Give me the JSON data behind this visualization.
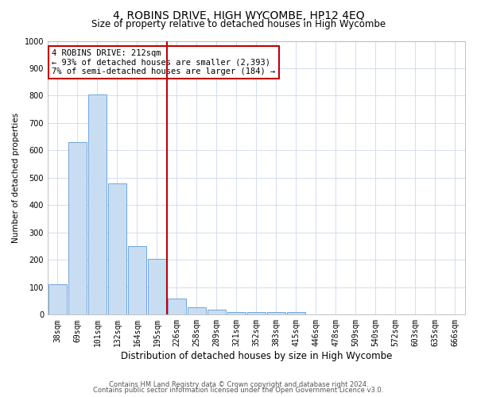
{
  "title": "4, ROBINS DRIVE, HIGH WYCOMBE, HP12 4EQ",
  "subtitle": "Size of property relative to detached houses in High Wycombe",
  "xlabel": "Distribution of detached houses by size in High Wycombe",
  "ylabel": "Number of detached properties",
  "categories": [
    "38sqm",
    "69sqm",
    "101sqm",
    "132sqm",
    "164sqm",
    "195sqm",
    "226sqm",
    "258sqm",
    "289sqm",
    "321sqm",
    "352sqm",
    "383sqm",
    "415sqm",
    "446sqm",
    "478sqm",
    "509sqm",
    "540sqm",
    "572sqm",
    "603sqm",
    "635sqm",
    "666sqm"
  ],
  "values": [
    110,
    630,
    805,
    480,
    250,
    205,
    60,
    28,
    18,
    10,
    10,
    10,
    10,
    0,
    0,
    0,
    0,
    0,
    0,
    0,
    0
  ],
  "bar_color": "#c9ddf2",
  "bar_edge_color": "#5b9bd5",
  "vline_x": 5.5,
  "vline_color": "#c00000",
  "annotation_line1": "4 ROBINS DRIVE: 212sqm",
  "annotation_line2": "← 93% of detached houses are smaller (2,393)",
  "annotation_line3": "7% of semi-detached houses are larger (184) →",
  "annotation_box_color": "#ffffff",
  "annotation_box_edge_color": "#c00000",
  "ylim": [
    0,
    1000
  ],
  "yticks": [
    0,
    100,
    200,
    300,
    400,
    500,
    600,
    700,
    800,
    900,
    1000
  ],
  "footer_line1": "Contains HM Land Registry data © Crown copyright and database right 2024.",
  "footer_line2": "Contains public sector information licensed under the Open Government Licence v3.0.",
  "bg_color": "#ffffff",
  "grid_color": "#cdd8ea",
  "title_fontsize": 10,
  "subtitle_fontsize": 8.5,
  "xlabel_fontsize": 8.5,
  "ylabel_fontsize": 7.5,
  "tick_fontsize": 7,
  "annotation_fontsize": 7.5,
  "footer_fontsize": 6
}
